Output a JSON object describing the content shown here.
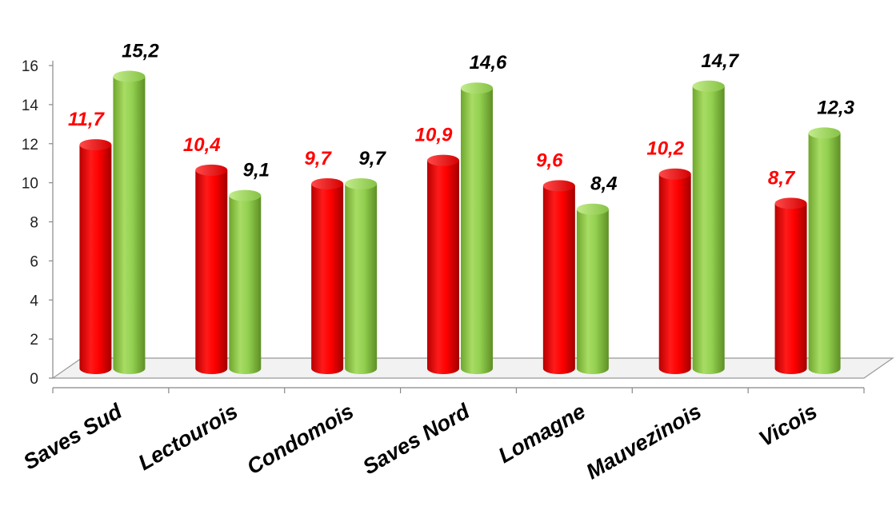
{
  "chart_data": {
    "type": "bar",
    "categories": [
      "Saves Sud",
      "Lectourois",
      "Condomois",
      "Saves Nord",
      "Lomagne",
      "Mauvezinois",
      "Vicois"
    ],
    "series": [
      {
        "values": [
          11.7,
          10.4,
          9.7,
          10.9,
          9.6,
          10.2,
          8.7
        ],
        "labels": [
          "11,7",
          "10,4",
          "9,7",
          "10,9",
          "9,6",
          "10,2",
          "8,7"
        ],
        "color": "#ff0000",
        "label_color": "#ff0000"
      },
      {
        "values": [
          15.2,
          9.1,
          9.7,
          14.6,
          8.4,
          14.7,
          12.3
        ],
        "labels": [
          "15,2",
          "9,1",
          "9,7",
          "14,6",
          "8,4",
          "14,7",
          "12,3"
        ],
        "color": "#92d050",
        "label_color": "#000000"
      }
    ],
    "y_ticks": [
      "0",
      "2",
      "4",
      "6",
      "8",
      "10",
      "12",
      "14",
      "16"
    ],
    "ylim": [
      0,
      16
    ],
    "grid": false,
    "legend": "none"
  }
}
